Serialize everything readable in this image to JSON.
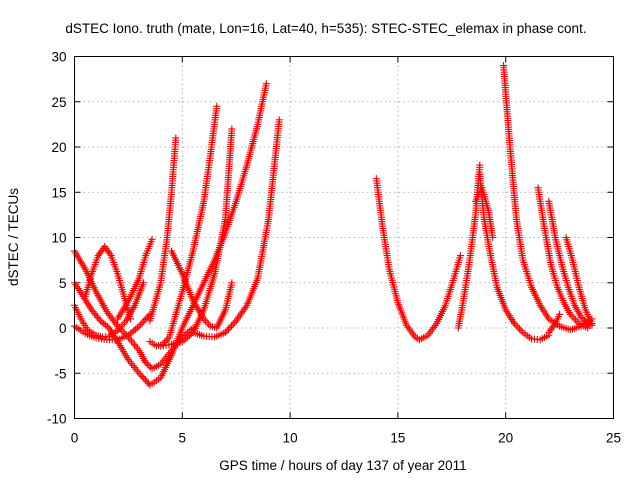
{
  "chart_data": {
    "type": "scatter",
    "title": "dSTEC Iono. truth (mate, Lon=16, Lat=40, h=535): STEC-STEC_elemax in phase cont.",
    "xlabel": "GPS time / hours of day 137 of year 2011",
    "ylabel": "dSTEC  / TECUs",
    "xlim": [
      0,
      25
    ],
    "ylim": [
      -10,
      30
    ],
    "xticks": [
      0,
      5,
      10,
      15,
      20,
      25
    ],
    "yticks": [
      -10,
      -5,
      0,
      5,
      10,
      15,
      20,
      25,
      30
    ],
    "grid": true,
    "legend": "none",
    "marker": "+",
    "color": "#ff0000",
    "series": [
      {
        "x": [
          0.0,
          0.5,
          1.0,
          1.5,
          2.0,
          2.5,
          3.0,
          3.3
        ],
        "values": [
          8.5,
          6.5,
          4.0,
          1.8,
          0.2,
          -1.0,
          -2.5,
          -3.8
        ]
      },
      {
        "x": [
          3.3,
          3.6,
          4.0,
          4.5,
          5.0,
          5.5
        ],
        "values": [
          -3.8,
          -4.5,
          -4.0,
          -2.5,
          -1.0,
          0.0
        ]
      },
      {
        "x": [
          0.0,
          0.4,
          0.8,
          1.2,
          1.6,
          2.0,
          2.5,
          3.0,
          3.5
        ],
        "values": [
          5.0,
          3.5,
          2.0,
          0.8,
          0.0,
          -1.5,
          -3.5,
          -5.0,
          -6.3
        ]
      },
      {
        "x": [
          3.5,
          4.0,
          4.5,
          5.0,
          5.5,
          6.0,
          6.5,
          7.0,
          7.5,
          8.0,
          8.5,
          8.9
        ],
        "values": [
          -6.3,
          -5.5,
          -3.0,
          0.0,
          2.5,
          5.0,
          7.5,
          10.5,
          14.0,
          18.0,
          22.5,
          27.0
        ]
      },
      {
        "x": [
          0.0,
          0.3,
          0.6,
          1.0,
          1.3,
          1.6,
          2.0,
          2.4,
          2.8,
          3.2
        ],
        "values": [
          2.5,
          1.0,
          -0.2,
          -0.8,
          -1.0,
          -0.9,
          -0.3,
          0.8,
          2.5,
          5.0
        ]
      },
      {
        "x": [
          0.5,
          0.8,
          1.1,
          1.4,
          1.7,
          2.0,
          2.3,
          2.6
        ],
        "values": [
          3.5,
          6.0,
          8.0,
          9.0,
          8.0,
          6.0,
          3.5,
          1.0
        ]
      },
      {
        "x": [
          0.0,
          0.5,
          1.0,
          1.5,
          2.0,
          2.5,
          3.0,
          3.5
        ],
        "values": [
          0.2,
          -0.6,
          -1.1,
          -1.3,
          -1.3,
          -0.8,
          0.2,
          1.5
        ]
      },
      {
        "x": [
          2.0,
          2.5,
          3.0,
          3.3,
          3.6
        ],
        "values": [
          1.0,
          3.0,
          5.5,
          8.0,
          9.8
        ]
      },
      {
        "x": [
          3.5,
          4.0,
          4.3,
          4.5,
          4.7
        ],
        "values": [
          0.8,
          5.0,
          10.0,
          15.0,
          21.0
        ]
      },
      {
        "x": [
          3.5,
          3.8,
          4.1,
          4.4,
          4.7,
          5.0,
          5.5,
          6.0,
          6.3,
          6.6
        ],
        "values": [
          -1.5,
          -2.0,
          -1.8,
          -1.0,
          1.5,
          4.0,
          8.5,
          14.0,
          19.0,
          24.5
        ]
      },
      {
        "x": [
          4.5,
          5.0,
          5.5,
          6.0,
          6.3,
          6.6,
          7.0,
          7.3
        ],
        "values": [
          8.5,
          6.0,
          3.0,
          1.0,
          0.2,
          0.0,
          2.0,
          5.0
        ]
      },
      {
        "x": [
          4.0,
          4.5,
          5.0,
          5.5,
          6.0,
          6.5,
          7.0,
          7.3
        ],
        "values": [
          -2.0,
          -1.8,
          -1.5,
          -0.5,
          2.0,
          6.0,
          12.0,
          22.0
        ]
      },
      {
        "x": [
          5.5,
          6.0,
          6.5,
          7.0,
          7.5,
          8.0,
          8.5,
          9.0,
          9.5
        ],
        "values": [
          -0.5,
          -0.9,
          -1.0,
          -0.5,
          0.8,
          2.5,
          5.5,
          12.0,
          23.0
        ]
      },
      {
        "x": [
          14.0,
          14.3,
          14.6,
          15.0,
          15.4,
          15.8,
          16.0,
          16.4,
          16.8,
          17.2,
          17.6,
          17.9
        ],
        "values": [
          16.5,
          11.0,
          6.5,
          2.8,
          0.3,
          -1.0,
          -1.3,
          -0.8,
          0.5,
          2.5,
          5.5,
          8.0
        ]
      },
      {
        "x": [
          17.8,
          18.0,
          18.3,
          18.6,
          18.8
        ],
        "values": [
          0.0,
          2.5,
          7.0,
          12.5,
          18.0
        ]
      },
      {
        "x": [
          18.8,
          19.0,
          19.3,
          19.6,
          20.0,
          20.4,
          20.8,
          21.2,
          21.6,
          22.0
        ],
        "values": [
          17.0,
          12.0,
          8.0,
          4.5,
          2.0,
          0.5,
          -0.5,
          -1.2,
          -1.3,
          -0.8
        ]
      },
      {
        "x": [
          22.0,
          22.3,
          22.5
        ],
        "values": [
          -0.5,
          0.5,
          1.5
        ]
      },
      {
        "x": [
          19.9,
          20.2,
          20.5,
          20.8,
          21.2,
          21.6,
          22.0,
          22.5,
          23.0,
          23.5,
          24.0
        ],
        "values": [
          29.0,
          20.0,
          12.0,
          7.5,
          4.5,
          2.5,
          1.0,
          0.2,
          -0.2,
          0.2,
          1.0
        ]
      },
      {
        "x": [
          21.5,
          21.8,
          22.1,
          22.4,
          22.7,
          23.0,
          23.4,
          23.8,
          24.0
        ],
        "values": [
          15.5,
          11.0,
          7.0,
          4.5,
          2.8,
          1.5,
          0.5,
          0.0,
          0.5
        ]
      },
      {
        "x": [
          22.0,
          22.3,
          22.6,
          22.9,
          23.2,
          23.5,
          23.8,
          24.0
        ],
        "values": [
          14.0,
          10.0,
          7.0,
          4.5,
          2.5,
          1.2,
          0.5,
          0.3
        ]
      },
      {
        "x": [
          22.8,
          23.1,
          23.4,
          23.7,
          24.0
        ],
        "values": [
          10.0,
          7.5,
          4.5,
          2.0,
          0.5
        ]
      },
      {
        "x": [
          18.6,
          18.9,
          19.2,
          19.4
        ],
        "values": [
          14.0,
          15.5,
          13.0,
          10.0
        ]
      }
    ]
  }
}
